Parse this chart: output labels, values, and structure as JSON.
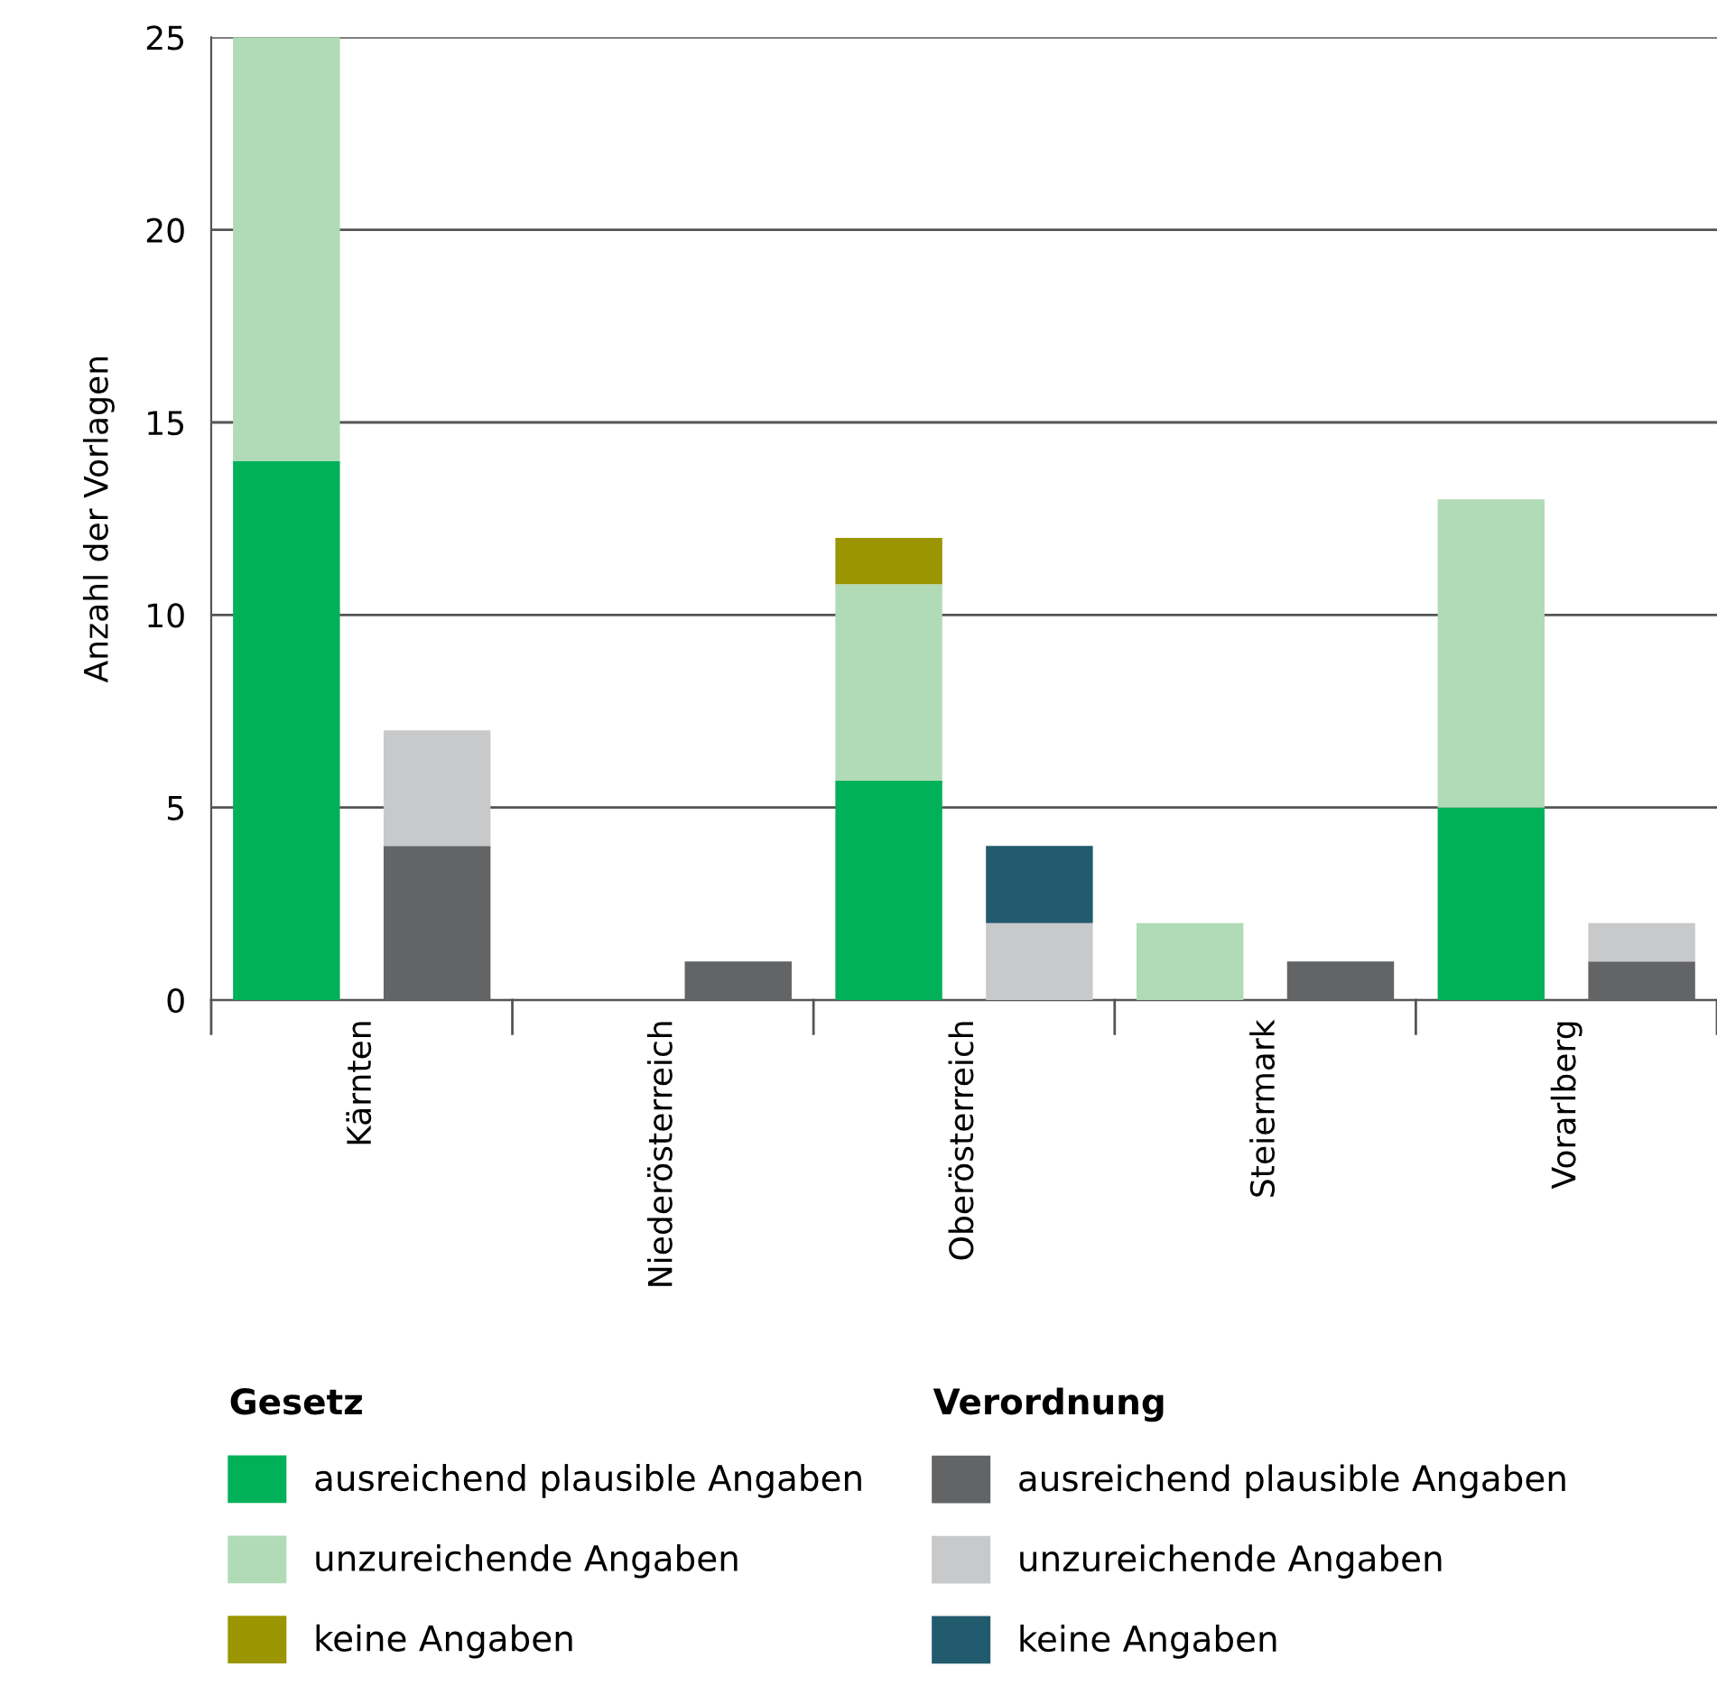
{
  "chart_data": {
    "type": "bar",
    "stacked": true,
    "ylabel": "Anzahl der Vorlagen",
    "categories": [
      "Kärnten",
      null,
      "Niederösterreich",
      null,
      "Oberösterreich",
      null,
      "Steiermark",
      null,
      "Vorarlberg",
      null
    ],
    "legend_title": [
      "Gesetz",
      "Verordnung"
    ],
    "series": [
      {
        "name": "ausreichend plausible Angaben",
        "color": "#00b15a",
        "values": [
          14,
          null,
          0,
          null,
          5.7,
          null,
          0,
          null,
          5,
          null
        ]
      },
      {
        "name": "unzureichende Angaben",
        "color": "#b0dbb6",
        "values": [
          11,
          null,
          0,
          null,
          5.1,
          null,
          2,
          null,
          8,
          null
        ]
      },
      {
        "name": "keine Angaben",
        "color": "#9a9500",
        "values": [
          0,
          null,
          0,
          null,
          1.2,
          null,
          0,
          null,
          0,
          null
        ]
      },
      {
        "name": "ausreichend plausible Angaben",
        "color": "#636466",
        "values": [
          null,
          4,
          null,
          1,
          null,
          0,
          null,
          1,
          null,
          1
        ]
      },
      {
        "name": "unzureichende Angaben",
        "color": "#c8c9cb",
        "values": [
          null,
          3,
          null,
          0,
          null,
          2,
          null,
          0,
          null,
          1
        ]
      },
      {
        "name": "keine Angaben",
        "color": "#225a6e",
        "values": [
          null,
          0,
          null,
          0,
          null,
          2,
          null,
          0,
          null,
          0
        ]
      }
    ],
    "ylim": [
      0,
      25
    ],
    "yticks": [
      0,
      5,
      10,
      15,
      20,
      25
    ],
    "grid": "y",
    "legend": "bottom"
  }
}
